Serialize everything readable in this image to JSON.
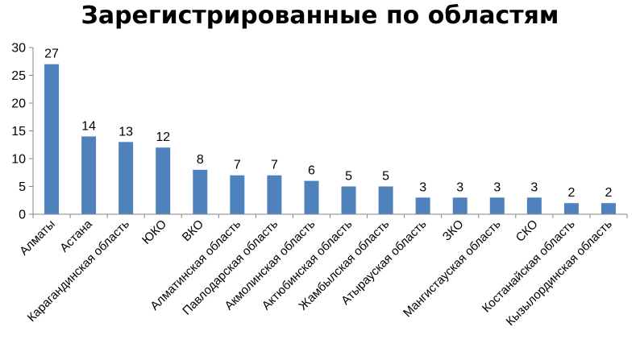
{
  "chart_data": {
    "type": "bar",
    "title": "Зарегистрированные по областям",
    "xlabel": "",
    "ylabel": "",
    "ylim": [
      0,
      30
    ],
    "yticks": [
      0,
      5,
      10,
      15,
      20,
      25,
      30
    ],
    "grid": false,
    "legend": "none",
    "bar_color": "#4F81BD",
    "categories": [
      "Алматы",
      "Астана",
      "Карагандинская область",
      "ЮКО",
      "ВКО",
      "Алматинская область",
      "Павлодарская область",
      "Акмолинская область",
      "Актюбинская область",
      "Жамбылская область",
      "Атырауская область",
      "ЗКО",
      "Мангистауская область",
      "СКО",
      "Костанайская область",
      "Кызылординская область"
    ],
    "values": [
      27,
      14,
      13,
      12,
      8,
      7,
      7,
      6,
      5,
      5,
      3,
      3,
      3,
      3,
      2,
      2
    ]
  }
}
